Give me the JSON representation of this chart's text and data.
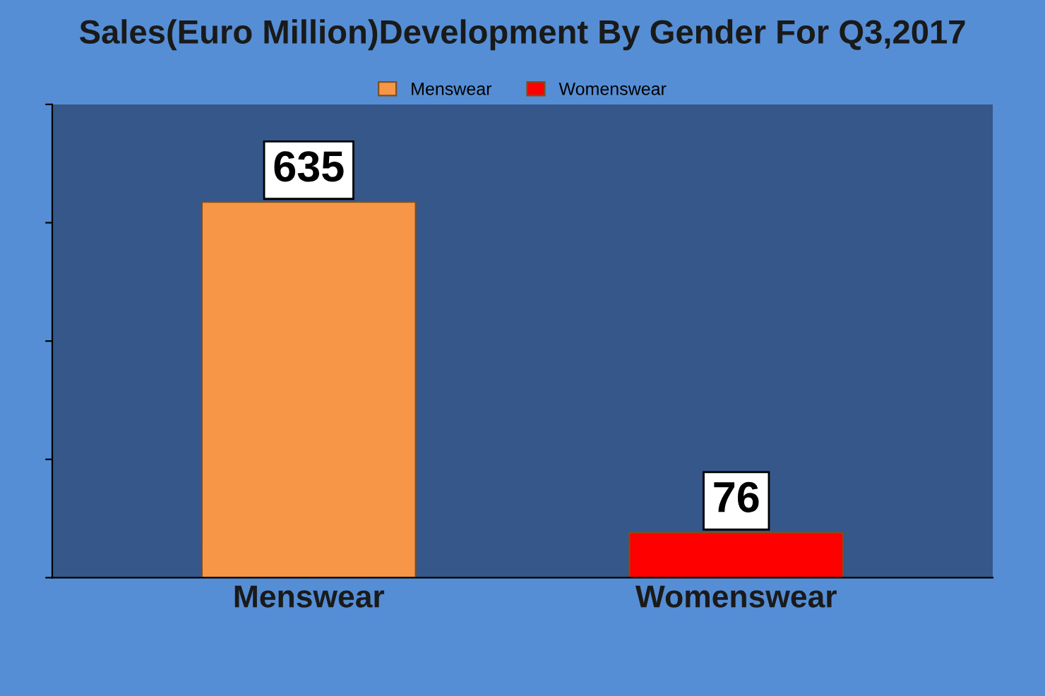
{
  "chart_data": {
    "type": "bar",
    "title": "Sales(Euro Million)Development By Gender For Q3,2017",
    "categories": [
      "Menswear",
      "Womenswear"
    ],
    "series": [
      {
        "name": "Menswear",
        "color": "#f79646",
        "values": [
          635,
          null
        ]
      },
      {
        "name": "Womenswear",
        "color": "#ff0000",
        "values": [
          null,
          76
        ]
      }
    ],
    "ylim": [
      0,
      800
    ],
    "yticks": [
      {
        "value": 0,
        "label": null
      },
      {
        "value": 200,
        "label": null
      },
      {
        "value": 400,
        "label": null
      },
      {
        "value": 600,
        "label": null
      },
      {
        "value": 800,
        "label": null
      }
    ],
    "data_labels": true,
    "legend": "top",
    "grid": false,
    "tick_labels": "x"
  }
}
